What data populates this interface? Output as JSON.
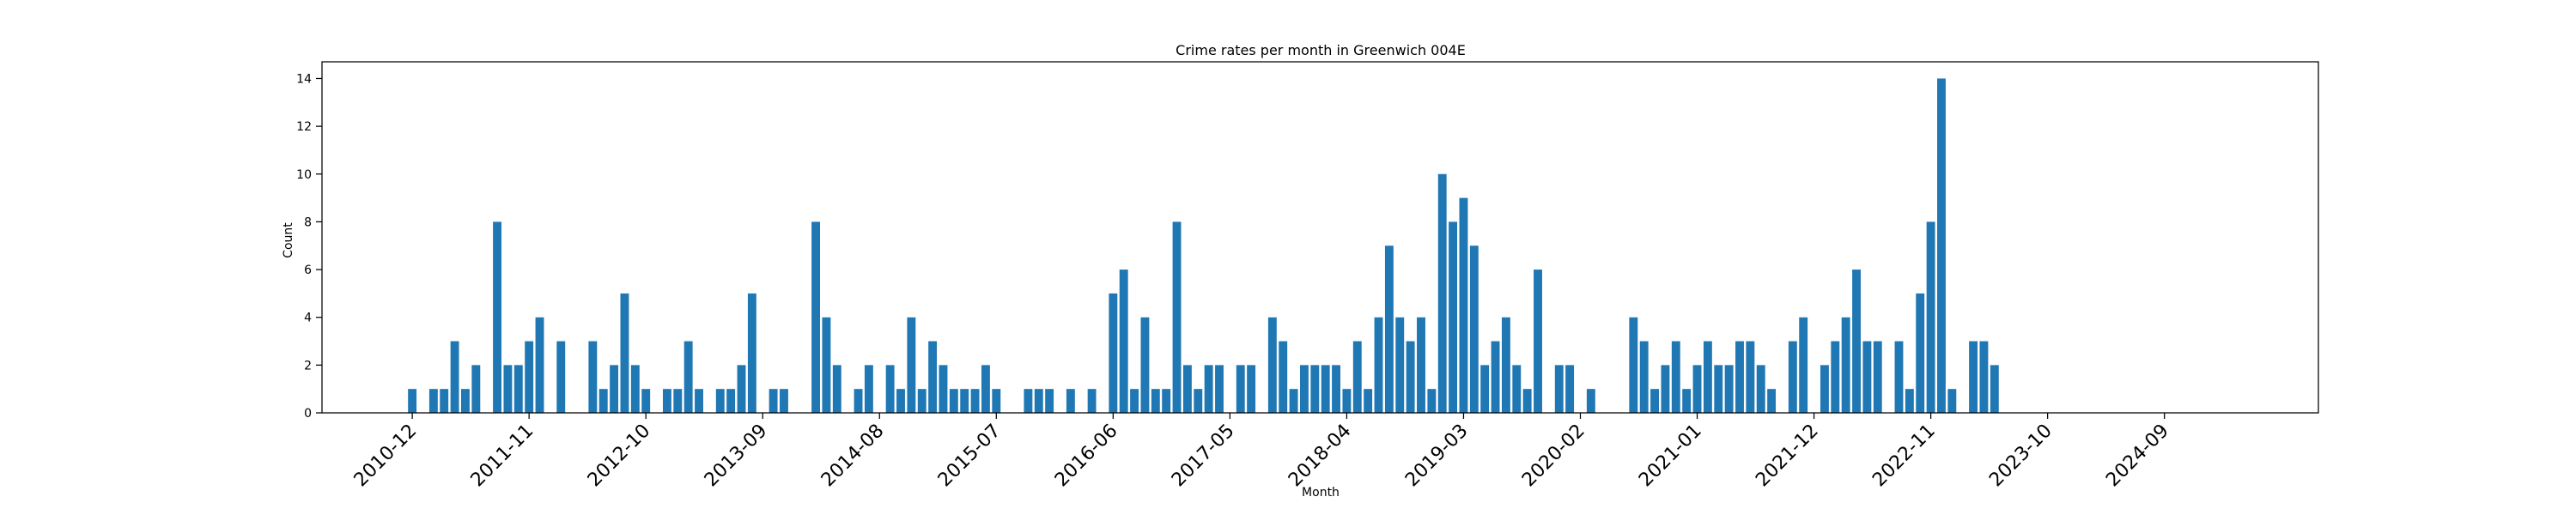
{
  "chart_data": {
    "type": "bar",
    "title": "Crime rates per month in Greenwich 004E",
    "xlabel": "Month",
    "ylabel": "Count",
    "ylim": [
      0,
      14.7
    ],
    "yticks": [
      0,
      2,
      4,
      6,
      8,
      10,
      12,
      14
    ],
    "x_tick_labels": [
      "2010-12",
      "2011-11",
      "2012-10",
      "2013-09",
      "2014-08",
      "2015-07",
      "2016-06",
      "2017-05",
      "2018-04",
      "2019-03",
      "2020-02",
      "2021-01",
      "2021-12",
      "2022-11",
      "2023-10",
      "2024-09"
    ],
    "x_tick_month_index": [
      0,
      11,
      22,
      33,
      44,
      55,
      66,
      77,
      88,
      99,
      110,
      121,
      132,
      143,
      154,
      165
    ],
    "x_range_month_index": [
      -8.5,
      179.5
    ],
    "bar_color": "#1f77b4",
    "grid": false,
    "legend": "none",
    "values": [
      1,
      0,
      1,
      1,
      3,
      1,
      2,
      0,
      8,
      2,
      2,
      3,
      4,
      0,
      3,
      0,
      0,
      3,
      1,
      2,
      5,
      2,
      1,
      0,
      1,
      1,
      3,
      1,
      0,
      1,
      1,
      2,
      5,
      0,
      1,
      1,
      0,
      0,
      8,
      4,
      2,
      0,
      1,
      2,
      0,
      2,
      1,
      4,
      1,
      3,
      2,
      1,
      1,
      1,
      2,
      1,
      0,
      0,
      1,
      1,
      1,
      0,
      1,
      0,
      1,
      0,
      5,
      6,
      1,
      4,
      1,
      1,
      8,
      2,
      1,
      2,
      2,
      0,
      2,
      2,
      0,
      4,
      3,
      1,
      2,
      2,
      2,
      2,
      1,
      3,
      1,
      4,
      7,
      4,
      3,
      4,
      1,
      10,
      8,
      9,
      7,
      2,
      3,
      4,
      2,
      1,
      6,
      0,
      2,
      2,
      0,
      1,
      0,
      0,
      0,
      4,
      3,
      1,
      2,
      3,
      1,
      2,
      3,
      2,
      2,
      3,
      3,
      2,
      1,
      0,
      3,
      4,
      0,
      2,
      3,
      4,
      6,
      3,
      3,
      0,
      3,
      1,
      5,
      8,
      14,
      1,
      0,
      3,
      3,
      2
    ]
  }
}
